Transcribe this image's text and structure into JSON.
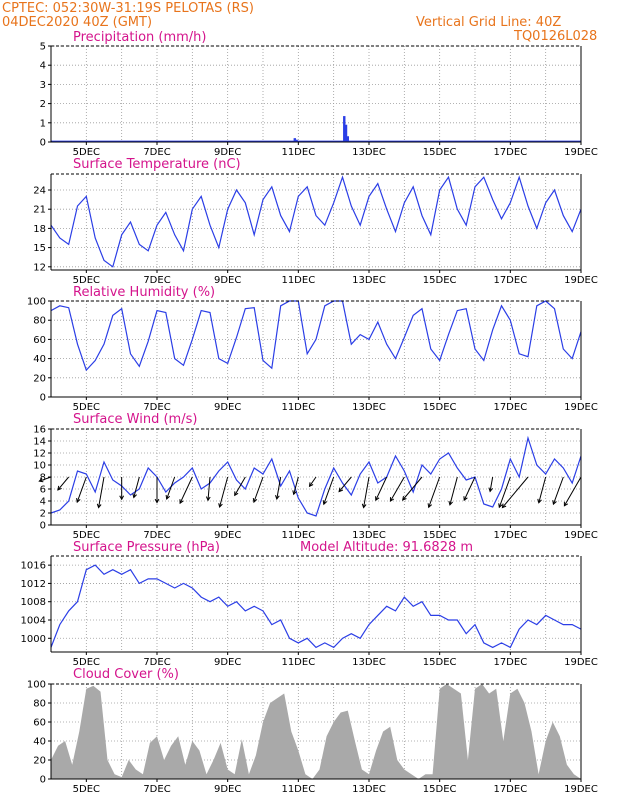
{
  "header": {
    "line1_left": "CPTEC:   052:30W-31:19S   PELOTAS (RS)",
    "line2_left": "04DEC2020 40Z (GMT)",
    "line1_right": "Vertical Grid Line: 40Z",
    "line2_right": "TQ0126L028"
  },
  "colors": {
    "header": "#e8741c",
    "title": "#d4148c",
    "line": "#2b3ee6",
    "cloud": "#a9a9a9",
    "axis": "#000000"
  },
  "x_axis": {
    "ticks": [
      "5DEC",
      "7DEC",
      "9DEC",
      "11DEC",
      "13DEC",
      "15DEC",
      "17DEC",
      "19DEC"
    ]
  },
  "panels": {
    "precip": {
      "title": "Precipitation (mm/h)",
      "yticks": [
        "0",
        "1",
        "2",
        "3",
        "4",
        "5"
      ]
    },
    "temp": {
      "title": "Surface Temperature (nC)",
      "yticks": [
        "12",
        "15",
        "18",
        "21",
        "24"
      ]
    },
    "rh": {
      "title": "Relative Humidity (%)",
      "yticks": [
        "0",
        "20",
        "40",
        "60",
        "80",
        "100"
      ]
    },
    "wind": {
      "title": "Surface Wind (m/s)",
      "yticks": [
        "0",
        "2",
        "4",
        "6",
        "8",
        "10",
        "12",
        "14",
        "16"
      ]
    },
    "pressure": {
      "title": "Surface Pressure (hPa)",
      "subtitle": "Model Altitude: 91.6828 m",
      "yticks": [
        "1000",
        "1004",
        "1008",
        "1012",
        "1016"
      ]
    },
    "cloud": {
      "title": "Cloud Cover (%)",
      "yticks": [
        "0",
        "20",
        "40",
        "60",
        "80",
        "100"
      ]
    }
  },
  "chart_data": [
    {
      "type": "bar",
      "panel": "precip",
      "x_range": [
        4.0,
        19.0
      ],
      "ylim": [
        0,
        5
      ],
      "x": [
        10.9,
        10.95,
        12.3,
        12.35,
        12.4
      ],
      "values": [
        0.2,
        0.12,
        1.35,
        0.9,
        0.3
      ]
    },
    {
      "type": "line",
      "panel": "temp",
      "x_range": [
        4.0,
        19.0
      ],
      "ylim": [
        11.5,
        26.5
      ],
      "x": [
        4.0,
        4.25,
        4.5,
        4.75,
        5.0,
        5.25,
        5.5,
        5.75,
        6.0,
        6.25,
        6.5,
        6.75,
        7.0,
        7.25,
        7.5,
        7.75,
        8.0,
        8.25,
        8.5,
        8.75,
        9.0,
        9.25,
        9.5,
        9.75,
        10.0,
        10.25,
        10.5,
        10.75,
        11.0,
        11.25,
        11.5,
        11.75,
        12.0,
        12.25,
        12.5,
        12.75,
        13.0,
        13.25,
        13.5,
        13.75,
        14.0,
        14.25,
        14.5,
        14.75,
        15.0,
        15.25,
        15.5,
        15.75,
        16.0,
        16.25,
        16.5,
        16.75,
        17.0,
        17.25,
        17.5,
        17.75,
        18.0,
        18.25,
        18.5,
        18.75,
        19.0
      ],
      "values": [
        18.5,
        16.5,
        15.5,
        21.5,
        23.0,
        16.5,
        13.0,
        12.0,
        17.0,
        19.0,
        15.5,
        14.5,
        18.5,
        20.5,
        17.0,
        14.5,
        21.0,
        23.0,
        18.5,
        15.0,
        21.0,
        24.0,
        22.0,
        17.0,
        22.5,
        24.5,
        20.0,
        17.5,
        23.0,
        24.5,
        20.0,
        18.5,
        22.0,
        26.0,
        21.5,
        18.5,
        23.0,
        25.0,
        21.0,
        17.5,
        22.0,
        24.5,
        20.0,
        17.0,
        24.0,
        26.0,
        21.0,
        18.5,
        24.5,
        26.0,
        22.5,
        19.5,
        22.0,
        26.0,
        21.5,
        18.0,
        22.0,
        24.0,
        20.0,
        17.5,
        21.0
      ]
    },
    {
      "type": "line",
      "panel": "rh",
      "x_range": [
        4.0,
        19.0
      ],
      "ylim": [
        0,
        100
      ],
      "x": [
        4.0,
        4.25,
        4.5,
        4.75,
        5.0,
        5.25,
        5.5,
        5.75,
        6.0,
        6.25,
        6.5,
        6.75,
        7.0,
        7.25,
        7.5,
        7.75,
        8.0,
        8.25,
        8.5,
        8.75,
        9.0,
        9.25,
        9.5,
        9.75,
        10.0,
        10.25,
        10.5,
        10.75,
        11.0,
        11.25,
        11.5,
        11.75,
        12.0,
        12.25,
        12.5,
        12.75,
        13.0,
        13.25,
        13.5,
        13.75,
        14.0,
        14.25,
        14.5,
        14.75,
        15.0,
        15.25,
        15.5,
        15.75,
        16.0,
        16.25,
        16.5,
        16.75,
        17.0,
        17.25,
        17.5,
        17.75,
        18.0,
        18.25,
        18.5,
        18.75,
        19.0
      ],
      "values": [
        90,
        95,
        93,
        55,
        28,
        38,
        55,
        85,
        92,
        45,
        32,
        58,
        90,
        88,
        40,
        33,
        60,
        90,
        88,
        40,
        35,
        62,
        92,
        93,
        38,
        30,
        95,
        100,
        100,
        45,
        60,
        95,
        100,
        100,
        55,
        65,
        60,
        78,
        55,
        40,
        62,
        85,
        92,
        50,
        38,
        65,
        90,
        92,
        50,
        38,
        70,
        95,
        80,
        45,
        42,
        95,
        100,
        92,
        50,
        40,
        68
      ]
    },
    {
      "type": "line",
      "panel": "wind",
      "x_range": [
        4.0,
        19.0
      ],
      "ylim": [
        0,
        16
      ],
      "x": [
        4.0,
        4.25,
        4.5,
        4.75,
        5.0,
        5.25,
        5.5,
        5.75,
        6.0,
        6.25,
        6.5,
        6.75,
        7.0,
        7.25,
        7.5,
        7.75,
        8.0,
        8.25,
        8.5,
        8.75,
        9.0,
        9.25,
        9.5,
        9.75,
        10.0,
        10.25,
        10.5,
        10.75,
        11.0,
        11.25,
        11.5,
        11.75,
        12.0,
        12.25,
        12.5,
        12.75,
        13.0,
        13.25,
        13.5,
        13.75,
        14.0,
        14.25,
        14.5,
        14.75,
        15.0,
        15.25,
        15.5,
        15.75,
        16.0,
        16.25,
        16.5,
        16.75,
        17.0,
        17.25,
        17.5,
        17.75,
        18.0,
        18.25,
        18.5,
        18.75,
        19.0
      ],
      "values": [
        2.0,
        2.5,
        4.0,
        9.0,
        8.5,
        5.5,
        10.5,
        7.5,
        6.5,
        5.0,
        6.0,
        9.5,
        8.0,
        5.5,
        7.0,
        8.0,
        9.5,
        6.0,
        7.0,
        9.0,
        10.5,
        7.5,
        6.0,
        9.5,
        8.5,
        11.0,
        6.5,
        9.0,
        4.5,
        2.0,
        1.5,
        6.0,
        9.5,
        7.0,
        5.0,
        8.5,
        10.5,
        7.0,
        8.0,
        11.5,
        9.0,
        5.5,
        10.0,
        8.5,
        11.0,
        12.0,
        9.5,
        7.5,
        8.0,
        3.5,
        3.0,
        6.0,
        11.0,
        8.0,
        14.5,
        10.0,
        8.5,
        11.0,
        9.5,
        7.0,
        11.5
      ]
    },
    {
      "type": "line",
      "panel": "pressure",
      "x_range": [
        4.0,
        19.0
      ],
      "ylim": [
        997,
        1018
      ],
      "x": [
        4.0,
        4.25,
        4.5,
        4.75,
        5.0,
        5.25,
        5.5,
        5.75,
        6.0,
        6.25,
        6.5,
        6.75,
        7.0,
        7.25,
        7.5,
        7.75,
        8.0,
        8.25,
        8.5,
        8.75,
        9.0,
        9.25,
        9.5,
        9.75,
        10.0,
        10.25,
        10.5,
        10.75,
        11.0,
        11.25,
        11.5,
        11.75,
        12.0,
        12.25,
        12.5,
        12.75,
        13.0,
        13.25,
        13.5,
        13.75,
        14.0,
        14.25,
        14.5,
        14.75,
        15.0,
        15.25,
        15.5,
        15.75,
        16.0,
        16.25,
        16.5,
        16.75,
        17.0,
        17.25,
        17.5,
        17.75,
        18.0,
        18.25,
        18.5,
        18.75,
        19.0
      ],
      "values": [
        998,
        1003,
        1006,
        1008,
        1015,
        1016,
        1014,
        1015,
        1014,
        1015,
        1012,
        1013,
        1013,
        1012,
        1011,
        1012,
        1011,
        1009,
        1008,
        1009,
        1007,
        1008,
        1006,
        1007,
        1006,
        1003,
        1004,
        1000,
        999,
        1000,
        998,
        999,
        998,
        1000,
        1001,
        1000,
        1003,
        1005,
        1007,
        1006,
        1009,
        1007,
        1008,
        1005,
        1005,
        1004,
        1004,
        1001,
        1003,
        999,
        998,
        999,
        998,
        1002,
        1004,
        1003,
        1005,
        1004,
        1003,
        1003,
        1002
      ]
    },
    {
      "type": "area",
      "panel": "cloud",
      "x_range": [
        4.0,
        19.0
      ],
      "ylim": [
        0,
        100
      ],
      "x": [
        4.0,
        4.2,
        4.4,
        4.6,
        4.8,
        5.0,
        5.2,
        5.4,
        5.6,
        5.8,
        6.0,
        6.2,
        6.4,
        6.6,
        6.8,
        7.0,
        7.2,
        7.4,
        7.6,
        7.8,
        8.0,
        8.2,
        8.4,
        8.6,
        8.8,
        9.0,
        9.2,
        9.4,
        9.6,
        9.8,
        10.0,
        10.2,
        10.4,
        10.6,
        10.8,
        11.0,
        11.2,
        11.4,
        11.6,
        11.8,
        12.0,
        12.2,
        12.4,
        12.6,
        12.8,
        13.0,
        13.2,
        13.4,
        13.6,
        13.8,
        14.0,
        14.2,
        14.4,
        14.6,
        14.8,
        15.0,
        15.2,
        15.4,
        15.6,
        15.8,
        16.0,
        16.2,
        16.4,
        16.6,
        16.8,
        17.0,
        17.2,
        17.4,
        17.6,
        17.8,
        18.0,
        18.2,
        18.4,
        18.6,
        18.8,
        19.0
      ],
      "values": [
        20,
        35,
        40,
        15,
        50,
        95,
        98,
        92,
        20,
        5,
        2,
        20,
        10,
        5,
        38,
        45,
        20,
        35,
        45,
        15,
        40,
        30,
        5,
        20,
        38,
        10,
        5,
        42,
        5,
        25,
        60,
        80,
        85,
        90,
        50,
        30,
        5,
        0,
        10,
        45,
        60,
        70,
        72,
        40,
        10,
        5,
        30,
        50,
        55,
        20,
        10,
        5,
        0,
        5,
        5,
        95,
        100,
        95,
        90,
        20,
        95,
        100,
        90,
        95,
        40,
        90,
        95,
        80,
        50,
        5,
        40,
        60,
        45,
        15,
        5,
        0
      ]
    }
  ]
}
